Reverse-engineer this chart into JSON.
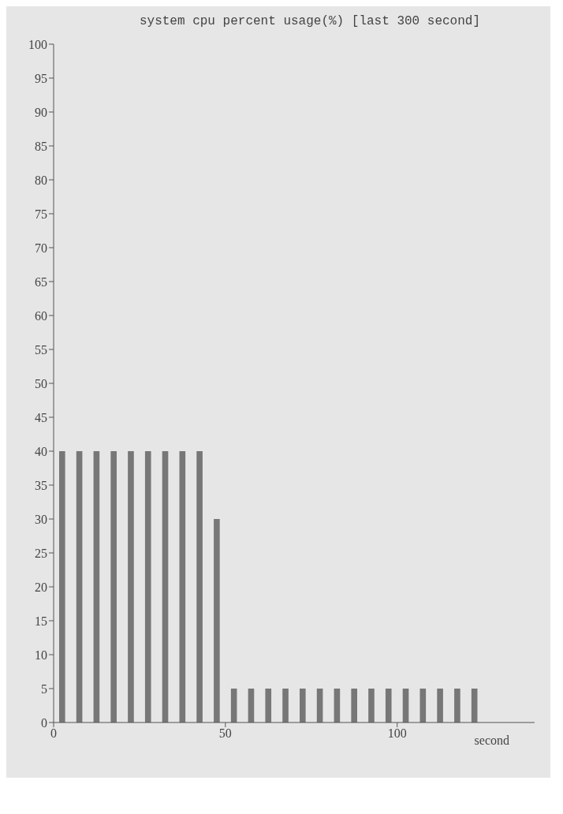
{
  "chart_data": {
    "type": "bar",
    "title": "system cpu percent usage(%) [last 300 second]",
    "xlabel": "second",
    "x": [
      2.5,
      7.5,
      12.5,
      17.5,
      22.5,
      27.5,
      32.5,
      37.5,
      42.5,
      47.5,
      52.5,
      57.5,
      62.5,
      67.5,
      72.5,
      77.5,
      82.5,
      87.5,
      92.5,
      97.5,
      102.5,
      107.5,
      112.5,
      117.5,
      122.5
    ],
    "values": [
      40,
      40,
      40,
      40,
      40,
      40,
      40,
      40,
      40,
      30,
      5,
      5,
      5,
      5,
      5,
      5,
      5,
      5,
      5,
      5,
      5,
      5,
      5,
      5,
      5
    ],
    "color": "#777777",
    "xlim": [
      0,
      140
    ],
    "xticks": [
      0,
      50,
      100
    ],
    "ylim": [
      0,
      100
    ],
    "yticks": [
      0,
      5,
      10,
      15,
      20,
      25,
      30,
      35,
      40,
      45,
      50,
      55,
      60,
      65,
      70,
      75,
      80,
      85,
      90,
      95,
      100
    ],
    "grid": false,
    "legend": false
  }
}
